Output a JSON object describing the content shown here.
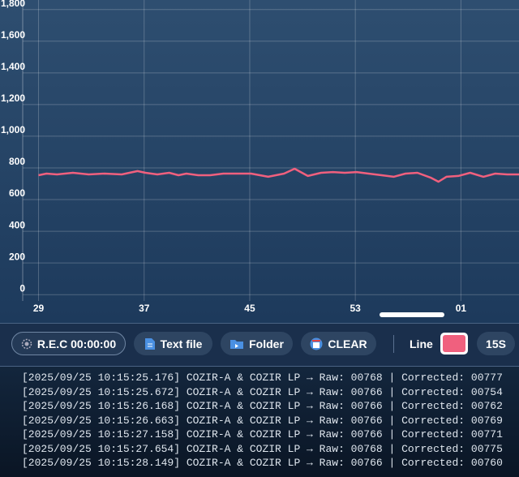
{
  "chart_data": {
    "type": "line",
    "color": "#f0607e",
    "grid": true,
    "x": [
      29,
      29.6,
      30.4,
      31.6,
      32.8,
      34,
      35.3,
      36.5,
      37.1,
      38,
      38.9,
      39.6,
      40.2,
      41.1,
      42,
      43,
      43.9,
      45.1,
      46.4,
      47.6,
      48.4,
      49.4,
      50.4,
      51.3,
      52.2,
      53.1,
      54,
      55,
      55.9,
      56.8,
      57.7,
      58.7,
      59.3,
      59.9,
      60.8,
      61.7,
      62.7,
      63.6,
      64.5,
      65.4
    ],
    "values": [
      754,
      764,
      759,
      769,
      759,
      764,
      759,
      780,
      769,
      759,
      769,
      754,
      764,
      754,
      754,
      764,
      764,
      764,
      744,
      764,
      795,
      749,
      769,
      774,
      769,
      774,
      764,
      754,
      744,
      764,
      769,
      739,
      713,
      744,
      749,
      769,
      744,
      764,
      759,
      759
    ],
    "xlim": [
      27.8,
      65.4
    ],
    "ylim": [
      -40,
      1860
    ],
    "xticks": [
      29,
      37,
      45,
      53,
      {
        "value": 61,
        "label": "01"
      }
    ],
    "yticks": [
      0,
      200,
      400,
      600,
      800,
      {
        "value": 1000,
        "label": "1,000"
      },
      {
        "value": 1200,
        "label": "1,200"
      },
      {
        "value": 1400,
        "label": "1,400"
      },
      {
        "value": 1600,
        "label": "1,600"
      },
      {
        "value": 1800,
        "label": "1,800"
      }
    ]
  },
  "toolbar": {
    "record": "R.E.C 00:00:00",
    "text_file": "Text file",
    "folder": "Folder",
    "clear": "CLEAR",
    "line_label": "Line",
    "interval": "15S"
  },
  "log": {
    "lines": [
      "[2025/09/25 10:15:25.176] COZIR-A & COZIR LP → Raw: 00768 | Corrected: 00777",
      "[2025/09/25 10:15:25.672] COZIR-A & COZIR LP → Raw: 00766 | Corrected: 00754",
      "[2025/09/25 10:15:26.168] COZIR-A & COZIR LP → Raw: 00766 | Corrected: 00762",
      "[2025/09/25 10:15:26.663] COZIR-A & COZIR LP → Raw: 00766 | Corrected: 00769",
      "[2025/09/25 10:15:27.158] COZIR-A & COZIR LP → Raw: 00766 | Corrected: 00771",
      "[2025/09/25 10:15:27.654] COZIR-A & COZIR LP → Raw: 00768 | Corrected: 00775",
      "[2025/09/25 10:15:28.149] COZIR-A & COZIR LP → Raw: 00766 | Corrected: 00760"
    ]
  }
}
